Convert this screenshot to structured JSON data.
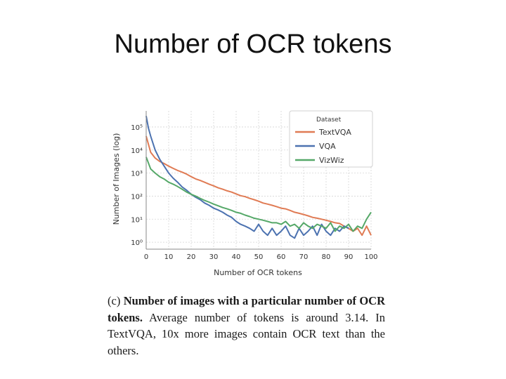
{
  "slide": {
    "title": "Number of OCR tokens"
  },
  "caption": {
    "label": "(c)",
    "bold": "Number of images with a particular number of OCR tokens.",
    "rest": "Average number of tokens is around 3.14. In TextVQA, 10x more images contain OCR text than the others."
  },
  "chart_data": {
    "type": "line",
    "xlabel": "Number of OCR tokens",
    "ylabel": "Number of Images (log)",
    "xlim": [
      0,
      100
    ],
    "ylim": [
      0.5,
      500000
    ],
    "yscale": "log",
    "xticks": [
      0,
      10,
      20,
      30,
      40,
      50,
      60,
      70,
      80,
      90,
      100
    ],
    "xtick_labels": [
      "0",
      "10",
      "20",
      "30",
      "40",
      "50",
      "60",
      "70",
      "80",
      "90",
      "100"
    ],
    "yticks": [
      1,
      10,
      100,
      1000,
      10000,
      100000
    ],
    "ytick_labels": [
      "10⁰",
      "10¹",
      "10²",
      "10³",
      "10⁴",
      "10⁵"
    ],
    "grid": true,
    "legend": {
      "title": "Dataset",
      "placement": "top-right"
    },
    "series": [
      {
        "name": "TextVQA",
        "color": "#e07b54",
        "x": [
          0,
          2,
          4,
          6,
          8,
          10,
          12,
          14,
          16,
          18,
          20,
          22,
          24,
          26,
          28,
          30,
          32,
          34,
          36,
          38,
          40,
          42,
          44,
          46,
          48,
          50,
          52,
          54,
          56,
          58,
          60,
          62,
          64,
          66,
          68,
          70,
          72,
          74,
          76,
          78,
          80,
          82,
          84,
          86,
          88,
          90,
          92,
          94,
          96,
          98,
          100
        ],
        "values": [
          40000,
          8000,
          4500,
          3200,
          2600,
          2000,
          1600,
          1300,
          1100,
          900,
          700,
          560,
          480,
          400,
          330,
          280,
          230,
          200,
          170,
          150,
          125,
          105,
          95,
          80,
          70,
          60,
          50,
          45,
          40,
          35,
          30,
          28,
          24,
          20,
          18,
          16,
          14,
          12,
          11,
          10,
          9,
          8,
          7,
          6.5,
          5,
          4,
          3,
          4,
          2,
          5,
          2
        ]
      },
      {
        "name": "VQA",
        "color": "#4c72b0",
        "x": [
          0,
          1,
          2,
          3,
          4,
          6,
          8,
          10,
          12,
          14,
          16,
          18,
          20,
          22,
          24,
          26,
          28,
          30,
          32,
          34,
          36,
          38,
          40,
          42,
          44,
          46,
          48,
          50,
          52,
          54,
          56,
          58,
          60,
          62,
          64,
          66,
          68,
          70,
          72,
          74,
          76,
          78,
          80,
          82,
          84,
          86,
          88,
          90
        ],
        "values": [
          300000,
          90000,
          40000,
          20000,
          10000,
          4000,
          2000,
          1000,
          600,
          400,
          250,
          180,
          120,
          90,
          70,
          50,
          40,
          30,
          25,
          20,
          15,
          12,
          8,
          6,
          5,
          4,
          3,
          6,
          3,
          2,
          4,
          2,
          3,
          5,
          2,
          1.5,
          4,
          2,
          3,
          5,
          2,
          6,
          3,
          2,
          4,
          3,
          5,
          4
        ]
      },
      {
        "name": "VizWiz",
        "color": "#55a868",
        "x": [
          0,
          2,
          4,
          6,
          8,
          10,
          12,
          14,
          16,
          18,
          20,
          22,
          24,
          26,
          28,
          30,
          32,
          34,
          36,
          38,
          40,
          42,
          44,
          46,
          48,
          50,
          52,
          54,
          56,
          58,
          60,
          62,
          64,
          66,
          68,
          70,
          72,
          74,
          76,
          78,
          80,
          82,
          84,
          86,
          88,
          90,
          92,
          94,
          96,
          98,
          100
        ],
        "values": [
          5000,
          1500,
          1000,
          700,
          550,
          400,
          330,
          260,
          200,
          150,
          120,
          100,
          80,
          65,
          55,
          45,
          38,
          32,
          28,
          24,
          20,
          18,
          15,
          13,
          11,
          10,
          9,
          8,
          7,
          7,
          6,
          8,
          5,
          6,
          4,
          7,
          5,
          4,
          6,
          5,
          4,
          7,
          3,
          5,
          4,
          6,
          3,
          5,
          4,
          10,
          20
        ]
      }
    ]
  }
}
